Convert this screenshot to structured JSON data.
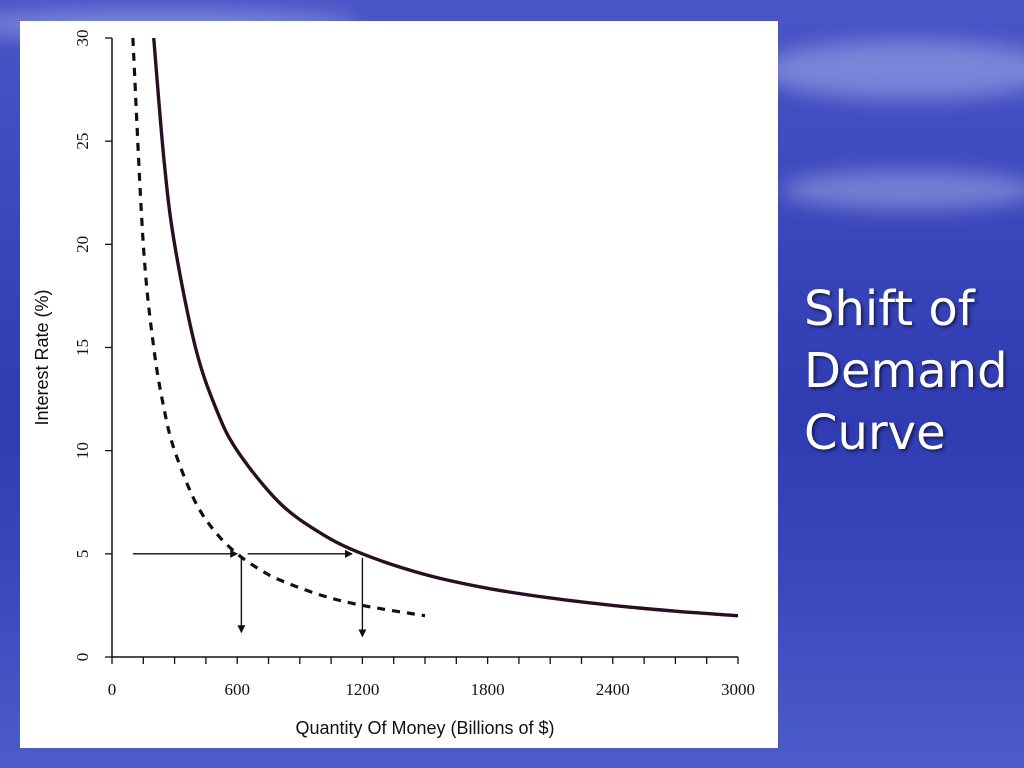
{
  "slide": {
    "title_lines": [
      "Shift of",
      "Demand",
      "Curve"
    ]
  },
  "chart_data": {
    "type": "line",
    "xlabel": "Quantity Of Money (Billions of $)",
    "ylabel": "Interest Rate (%)",
    "xlim": [
      0,
      3000
    ],
    "ylim": [
      0,
      30
    ],
    "x_ticks": [
      0,
      600,
      1200,
      1800,
      2400,
      3000
    ],
    "y_ticks": [
      0,
      5,
      10,
      15,
      20,
      25,
      30
    ],
    "grid": false,
    "series": [
      {
        "style": "solid",
        "color": "#2a0f22",
        "x": [
          200,
          250,
          300,
          400,
          500,
          600,
          800,
          1000,
          1200,
          1500,
          1800,
          2100,
          2400,
          2700,
          3000
        ],
        "y": [
          30,
          24,
          20,
          15,
          12,
          10,
          7.5,
          6,
          5,
          4,
          3.33,
          2.86,
          2.5,
          2.22,
          2
        ]
      },
      {
        "style": "dashed",
        "color": "#111111",
        "x": [
          100,
          150,
          200,
          250,
          300,
          400,
          500,
          600,
          700,
          800,
          1000,
          1200,
          1500
        ],
        "y": [
          30,
          20,
          15,
          12,
          10,
          7.5,
          6,
          5,
          4.29,
          3.75,
          3,
          2.5,
          2
        ]
      }
    ],
    "annotations": [
      {
        "type": "arrow",
        "from": [
          100,
          5
        ],
        "to": [
          600,
          5
        ]
      },
      {
        "type": "arrow",
        "from": [
          650,
          5
        ],
        "to": [
          1150,
          5
        ]
      },
      {
        "type": "arrow",
        "from": [
          620,
          4.8
        ],
        "to": [
          620,
          1.2
        ]
      },
      {
        "type": "arrow",
        "from": [
          1200,
          4.8
        ],
        "to": [
          1200,
          1.0
        ]
      }
    ]
  }
}
